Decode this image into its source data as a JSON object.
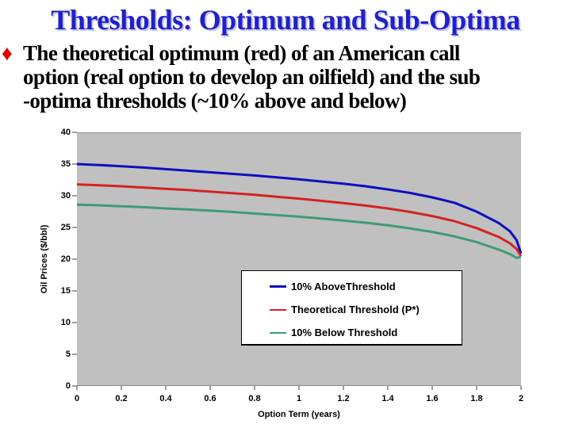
{
  "slide": {
    "title": "Thresholds: Optimum and Sub-Optima",
    "bullet_glyph": "♦",
    "bullet_lines": [
      "The theoretical optimum (red) of an American call",
      "option (real option to develop an oilfield) and the sub",
      "-optima thresholds (~10% above and below)"
    ]
  },
  "colors": {
    "title_blue": "#2121c8",
    "bullet_red": "#e40000",
    "plot_background": "#c0c0c0",
    "above_line": "#0f0fbe",
    "theoretical_line": "#d42222",
    "below_line": "#3f9b74"
  },
  "chart_data": {
    "type": "line",
    "title": "",
    "xlabel": "Option Term (years)",
    "ylabel": "Oil Prices ($/bbl)",
    "xlim": [
      0,
      2
    ],
    "ylim": [
      0,
      40
    ],
    "x_ticks": [
      0,
      0.2,
      0.4,
      0.6,
      0.8,
      1,
      1.2,
      1.4,
      1.6,
      1.8,
      2
    ],
    "y_ticks": [
      0,
      5,
      10,
      15,
      20,
      25,
      30,
      35,
      40
    ],
    "grid": false,
    "legend_position": "inside-bottom-center",
    "x": [
      0,
      0.1,
      0.2,
      0.3,
      0.4,
      0.5,
      0.6,
      0.7,
      0.8,
      0.9,
      1.0,
      1.1,
      1.2,
      1.3,
      1.4,
      1.5,
      1.6,
      1.7,
      1.8,
      1.9,
      1.95,
      1.98,
      2.0
    ],
    "series": [
      {
        "name": "10% AboveThreshold",
        "color": "#0f0fbe",
        "line_width": 3,
        "legend_line_width": 3,
        "values": [
          35.0,
          34.85,
          34.65,
          34.45,
          34.2,
          33.95,
          33.7,
          33.45,
          33.2,
          32.9,
          32.6,
          32.25,
          31.9,
          31.5,
          31.0,
          30.45,
          29.75,
          28.9,
          27.5,
          25.7,
          24.4,
          23.0,
          20.9
        ]
      },
      {
        "name": "Theoretical Threshold (P*)",
        "color": "#d42222",
        "line_width": 3,
        "legend_line_width": 2,
        "values": [
          31.8,
          31.65,
          31.5,
          31.3,
          31.1,
          30.9,
          30.65,
          30.4,
          30.15,
          29.85,
          29.55,
          29.2,
          28.85,
          28.45,
          28.0,
          27.45,
          26.8,
          26.0,
          24.9,
          23.5,
          22.5,
          21.6,
          20.5
        ]
      },
      {
        "name": "10% Below Threshold",
        "color": "#3f9b74",
        "line_width": 3,
        "legend_line_width": 2,
        "values": [
          28.6,
          28.5,
          28.35,
          28.2,
          28.0,
          27.85,
          27.65,
          27.45,
          27.2,
          26.95,
          26.7,
          26.4,
          26.1,
          25.75,
          25.35,
          24.85,
          24.3,
          23.6,
          22.7,
          21.5,
          20.8,
          20.2,
          20.4
        ]
      }
    ]
  }
}
